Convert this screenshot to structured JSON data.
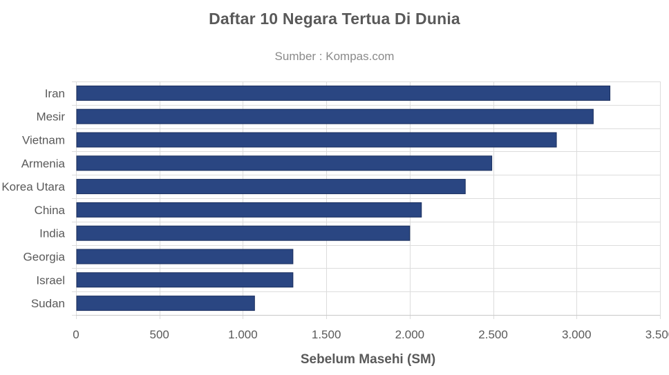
{
  "chart_data": {
    "type": "bar",
    "orientation": "horizontal",
    "title": "Daftar 10 Negara Tertua Di Dunia",
    "subtitle": "Sumber : Kompas.com",
    "xlabel": "Sebelum Masehi (SM)",
    "ylabel": "",
    "categories": [
      "Iran",
      "Mesir",
      "Vietnam",
      "Armenia",
      "Korea Utara",
      "China",
      "India",
      "Georgia",
      "Israel",
      "Sudan"
    ],
    "values": [
      3200,
      3100,
      2879,
      2492,
      2333,
      2070,
      2000,
      1300,
      1300,
      1070
    ],
    "xlim": [
      0,
      3500
    ],
    "xticks": [
      0,
      500,
      1000,
      1500,
      2000,
      2500,
      3000,
      3500
    ],
    "xtick_labels": [
      "0",
      "500",
      "1.000",
      "1.500",
      "2.000",
      "2.500",
      "3.000",
      "3.500"
    ],
    "grid": true,
    "legend": "none",
    "bar_color": "#2a4682",
    "bar_border_color": "#1b2f5e"
  }
}
